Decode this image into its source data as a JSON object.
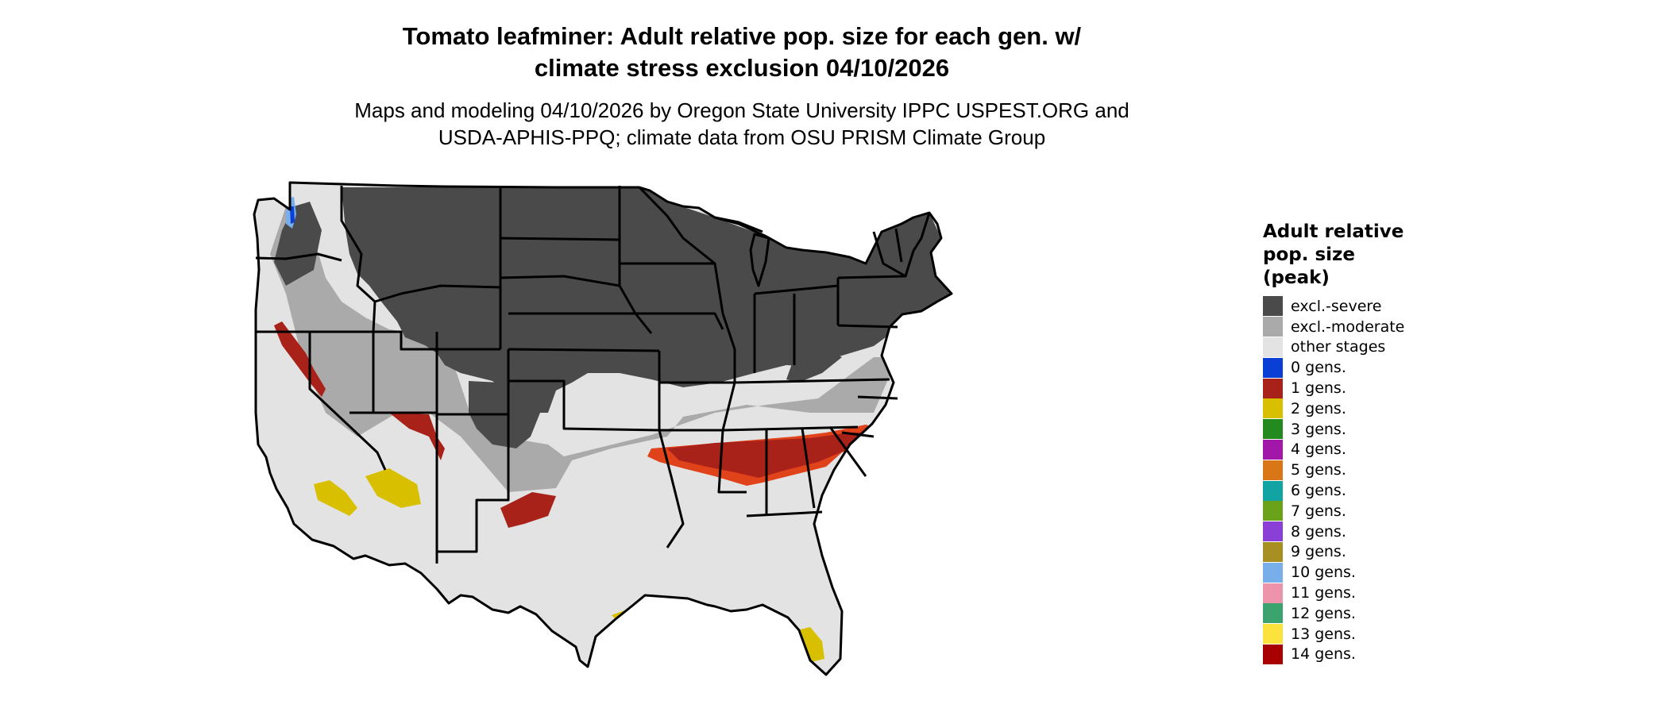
{
  "title": {
    "line1": "Tomato leafminer: Adult relative pop. size for each gen. w/",
    "line2": "climate stress exclusion 04/10/2026"
  },
  "subtitle": {
    "line1": "Maps and modeling 04/10/2026 by Oregon State University IPPC USPEST.ORG and",
    "line2": "USDA-APHIS-PPQ; climate data from OSU PRISM Climate Group"
  },
  "legend": {
    "title_line1": "Adult relative",
    "title_line2": "pop. size",
    "title_line3": "(peak)",
    "items": [
      {
        "label": "excl.-severe",
        "color": "#4a4a4a"
      },
      {
        "label": "excl.-moderate",
        "color": "#aaaaaa"
      },
      {
        "label": "other stages",
        "color": "#e3e3e3"
      },
      {
        "label": "0 gens.",
        "color": "#0a3fd6"
      },
      {
        "label": "1 gens.",
        "color": "#a8221a"
      },
      {
        "label": "2 gens.",
        "color": "#d8c000"
      },
      {
        "label": "3 gens.",
        "color": "#238a1f"
      },
      {
        "label": "4 gens.",
        "color": "#a216a8"
      },
      {
        "label": "5 gens.",
        "color": "#d97618"
      },
      {
        "label": "6 gens.",
        "color": "#12a3a3"
      },
      {
        "label": "7 gens.",
        "color": "#6aa21a"
      },
      {
        "label": "8 gens.",
        "color": "#8a3fd6"
      },
      {
        "label": "9 gens.",
        "color": "#a88f22"
      },
      {
        "label": "10 gens.",
        "color": "#78aeea"
      },
      {
        "label": "11 gens.",
        "color": "#ee94aa"
      },
      {
        "label": "12 gens.",
        "color": "#3aa36e"
      },
      {
        "label": "13 gens.",
        "color": "#fce23c"
      },
      {
        "label": "14 gens.",
        "color": "#a80000"
      }
    ]
  },
  "map": {
    "colors": {
      "severe": "#4a4a4a",
      "moderate": "#aaaaaa",
      "other": "#e3e3e3",
      "gen1": "#a8221a",
      "gen1_edge": "#e0421a",
      "gen2": "#d8c000",
      "gen0": "#0a3fd6",
      "gen10": "#78aeea",
      "border": "#000000"
    }
  }
}
